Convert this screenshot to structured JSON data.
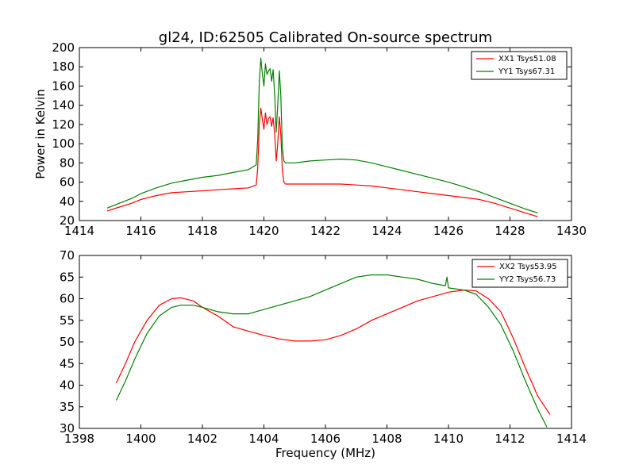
{
  "figure": {
    "title": "gl24, ID:62505 Calibrated On-source spectrum",
    "xlabel": "Frequency (MHz)",
    "top_ylabel": "Power in Kelvin"
  },
  "chart_data": [
    {
      "type": "line",
      "title": "gl24, ID:62505 Calibrated On-source spectrum",
      "xlabel": "",
      "ylabel": "Power in Kelvin",
      "xlim": [
        1414,
        1430
      ],
      "ylim": [
        20,
        200
      ],
      "xticks": [
        1414,
        1416,
        1418,
        1420,
        1422,
        1424,
        1426,
        1428,
        1430
      ],
      "yticks": [
        20,
        40,
        60,
        80,
        100,
        120,
        140,
        160,
        180,
        200
      ],
      "grid": false,
      "legend": "top-right",
      "series": [
        {
          "name": "XX1 Tsys51.08",
          "color": "#ff0000",
          "x": [
            1414.9,
            1415.3,
            1415.7,
            1416.0,
            1416.5,
            1417.0,
            1417.5,
            1418.0,
            1418.5,
            1419.0,
            1419.5,
            1419.75,
            1419.8,
            1419.85,
            1419.9,
            1419.95,
            1420.0,
            1420.05,
            1420.1,
            1420.15,
            1420.2,
            1420.25,
            1420.3,
            1420.35,
            1420.4,
            1420.45,
            1420.5,
            1420.55,
            1420.6,
            1420.65,
            1420.7,
            1421.0,
            1421.5,
            1422.0,
            1422.5,
            1423.0,
            1423.5,
            1424.0,
            1424.5,
            1425.0,
            1425.5,
            1426.0,
            1426.5,
            1427.0,
            1427.5,
            1428.0,
            1428.5,
            1428.9
          ],
          "y": [
            30,
            34,
            38,
            42,
            46,
            49,
            50,
            51,
            52,
            53,
            54,
            57,
            75,
            120,
            137,
            125,
            115,
            132,
            120,
            126,
            128,
            118,
            127,
            110,
            82,
            100,
            128,
            110,
            72,
            60,
            58,
            58,
            58,
            58,
            58,
            57,
            56,
            54,
            52,
            50,
            48,
            46,
            44,
            42,
            38,
            33,
            28,
            24
          ]
        },
        {
          "name": "YY1 Tsys67.31",
          "color": "#008000",
          "x": [
            1414.9,
            1415.3,
            1415.7,
            1416.0,
            1416.5,
            1417.0,
            1417.5,
            1418.0,
            1418.5,
            1419.0,
            1419.5,
            1419.75,
            1419.8,
            1419.85,
            1419.9,
            1419.95,
            1420.0,
            1420.05,
            1420.1,
            1420.15,
            1420.2,
            1420.25,
            1420.3,
            1420.35,
            1420.4,
            1420.45,
            1420.5,
            1420.55,
            1420.6,
            1420.65,
            1420.7,
            1421.0,
            1421.5,
            1422.0,
            1422.5,
            1423.0,
            1423.5,
            1424.0,
            1424.5,
            1425.0,
            1425.5,
            1426.0,
            1426.5,
            1427.0,
            1427.5,
            1428.0,
            1428.5,
            1428.9
          ],
          "y": [
            33,
            38,
            43,
            48,
            54,
            59,
            62,
            65,
            67,
            70,
            73,
            78,
            105,
            165,
            189,
            172,
            160,
            183,
            172,
            176,
            178,
            165,
            177,
            150,
            112,
            140,
            176,
            150,
            95,
            82,
            80,
            80,
            82,
            83,
            84,
            83,
            80,
            76,
            72,
            68,
            64,
            60,
            55,
            50,
            44,
            38,
            32,
            28
          ]
        }
      ]
    },
    {
      "type": "line",
      "title": "",
      "xlabel": "Frequency (MHz)",
      "ylabel": "",
      "xlim": [
        1398,
        1414
      ],
      "ylim": [
        30,
        70
      ],
      "xticks": [
        1398,
        1400,
        1402,
        1404,
        1406,
        1408,
        1410,
        1412,
        1414
      ],
      "yticks": [
        30,
        35,
        40,
        45,
        50,
        55,
        60,
        65,
        70
      ],
      "grid": false,
      "legend": "top-right",
      "series": [
        {
          "name": "XX2 Tsys53.95",
          "color": "#ff0000",
          "x": [
            1399.2,
            1399.5,
            1399.8,
            1400.2,
            1400.6,
            1401.0,
            1401.3,
            1401.7,
            1402.0,
            1402.5,
            1403.0,
            1403.5,
            1404.0,
            1404.5,
            1405.0,
            1405.5,
            1406.0,
            1406.5,
            1407.0,
            1407.5,
            1408.0,
            1408.5,
            1409.0,
            1409.5,
            1410.0,
            1410.5,
            1410.9,
            1411.3,
            1411.7,
            1412.1,
            1412.5,
            1412.9,
            1413.3
          ],
          "y": [
            40.5,
            45,
            50,
            55,
            58.5,
            60,
            60.2,
            59.5,
            58,
            56,
            53.5,
            52.5,
            51.5,
            50.7,
            50.2,
            50.2,
            50.5,
            51.5,
            53,
            55,
            56.5,
            58,
            59.5,
            60.5,
            61.5,
            62,
            61.8,
            60,
            57,
            51,
            44,
            37.5,
            33.2
          ]
        },
        {
          "name": "YY2 Tsys56.73",
          "color": "#008000",
          "x": [
            1399.2,
            1399.5,
            1399.8,
            1400.2,
            1400.6,
            1401.0,
            1401.3,
            1401.7,
            1402.0,
            1402.5,
            1403.0,
            1403.5,
            1404.0,
            1404.5,
            1405.0,
            1405.5,
            1406.0,
            1406.5,
            1407.0,
            1407.5,
            1408.0,
            1408.5,
            1409.0,
            1409.5,
            1409.9,
            1409.95,
            1410.0,
            1410.5,
            1410.9,
            1411.3,
            1411.7,
            1412.1,
            1412.5,
            1412.9,
            1413.2
          ],
          "y": [
            36.5,
            41,
            46,
            52,
            56,
            58,
            58.5,
            58.5,
            58,
            57,
            56.5,
            56.5,
            57.5,
            58.5,
            59.5,
            60.5,
            62,
            63.5,
            65,
            65.5,
            65.5,
            65,
            64.5,
            63.5,
            63,
            65,
            62.5,
            62,
            61,
            58,
            54,
            48,
            41,
            34.5,
            30.3
          ]
        }
      ]
    }
  ]
}
